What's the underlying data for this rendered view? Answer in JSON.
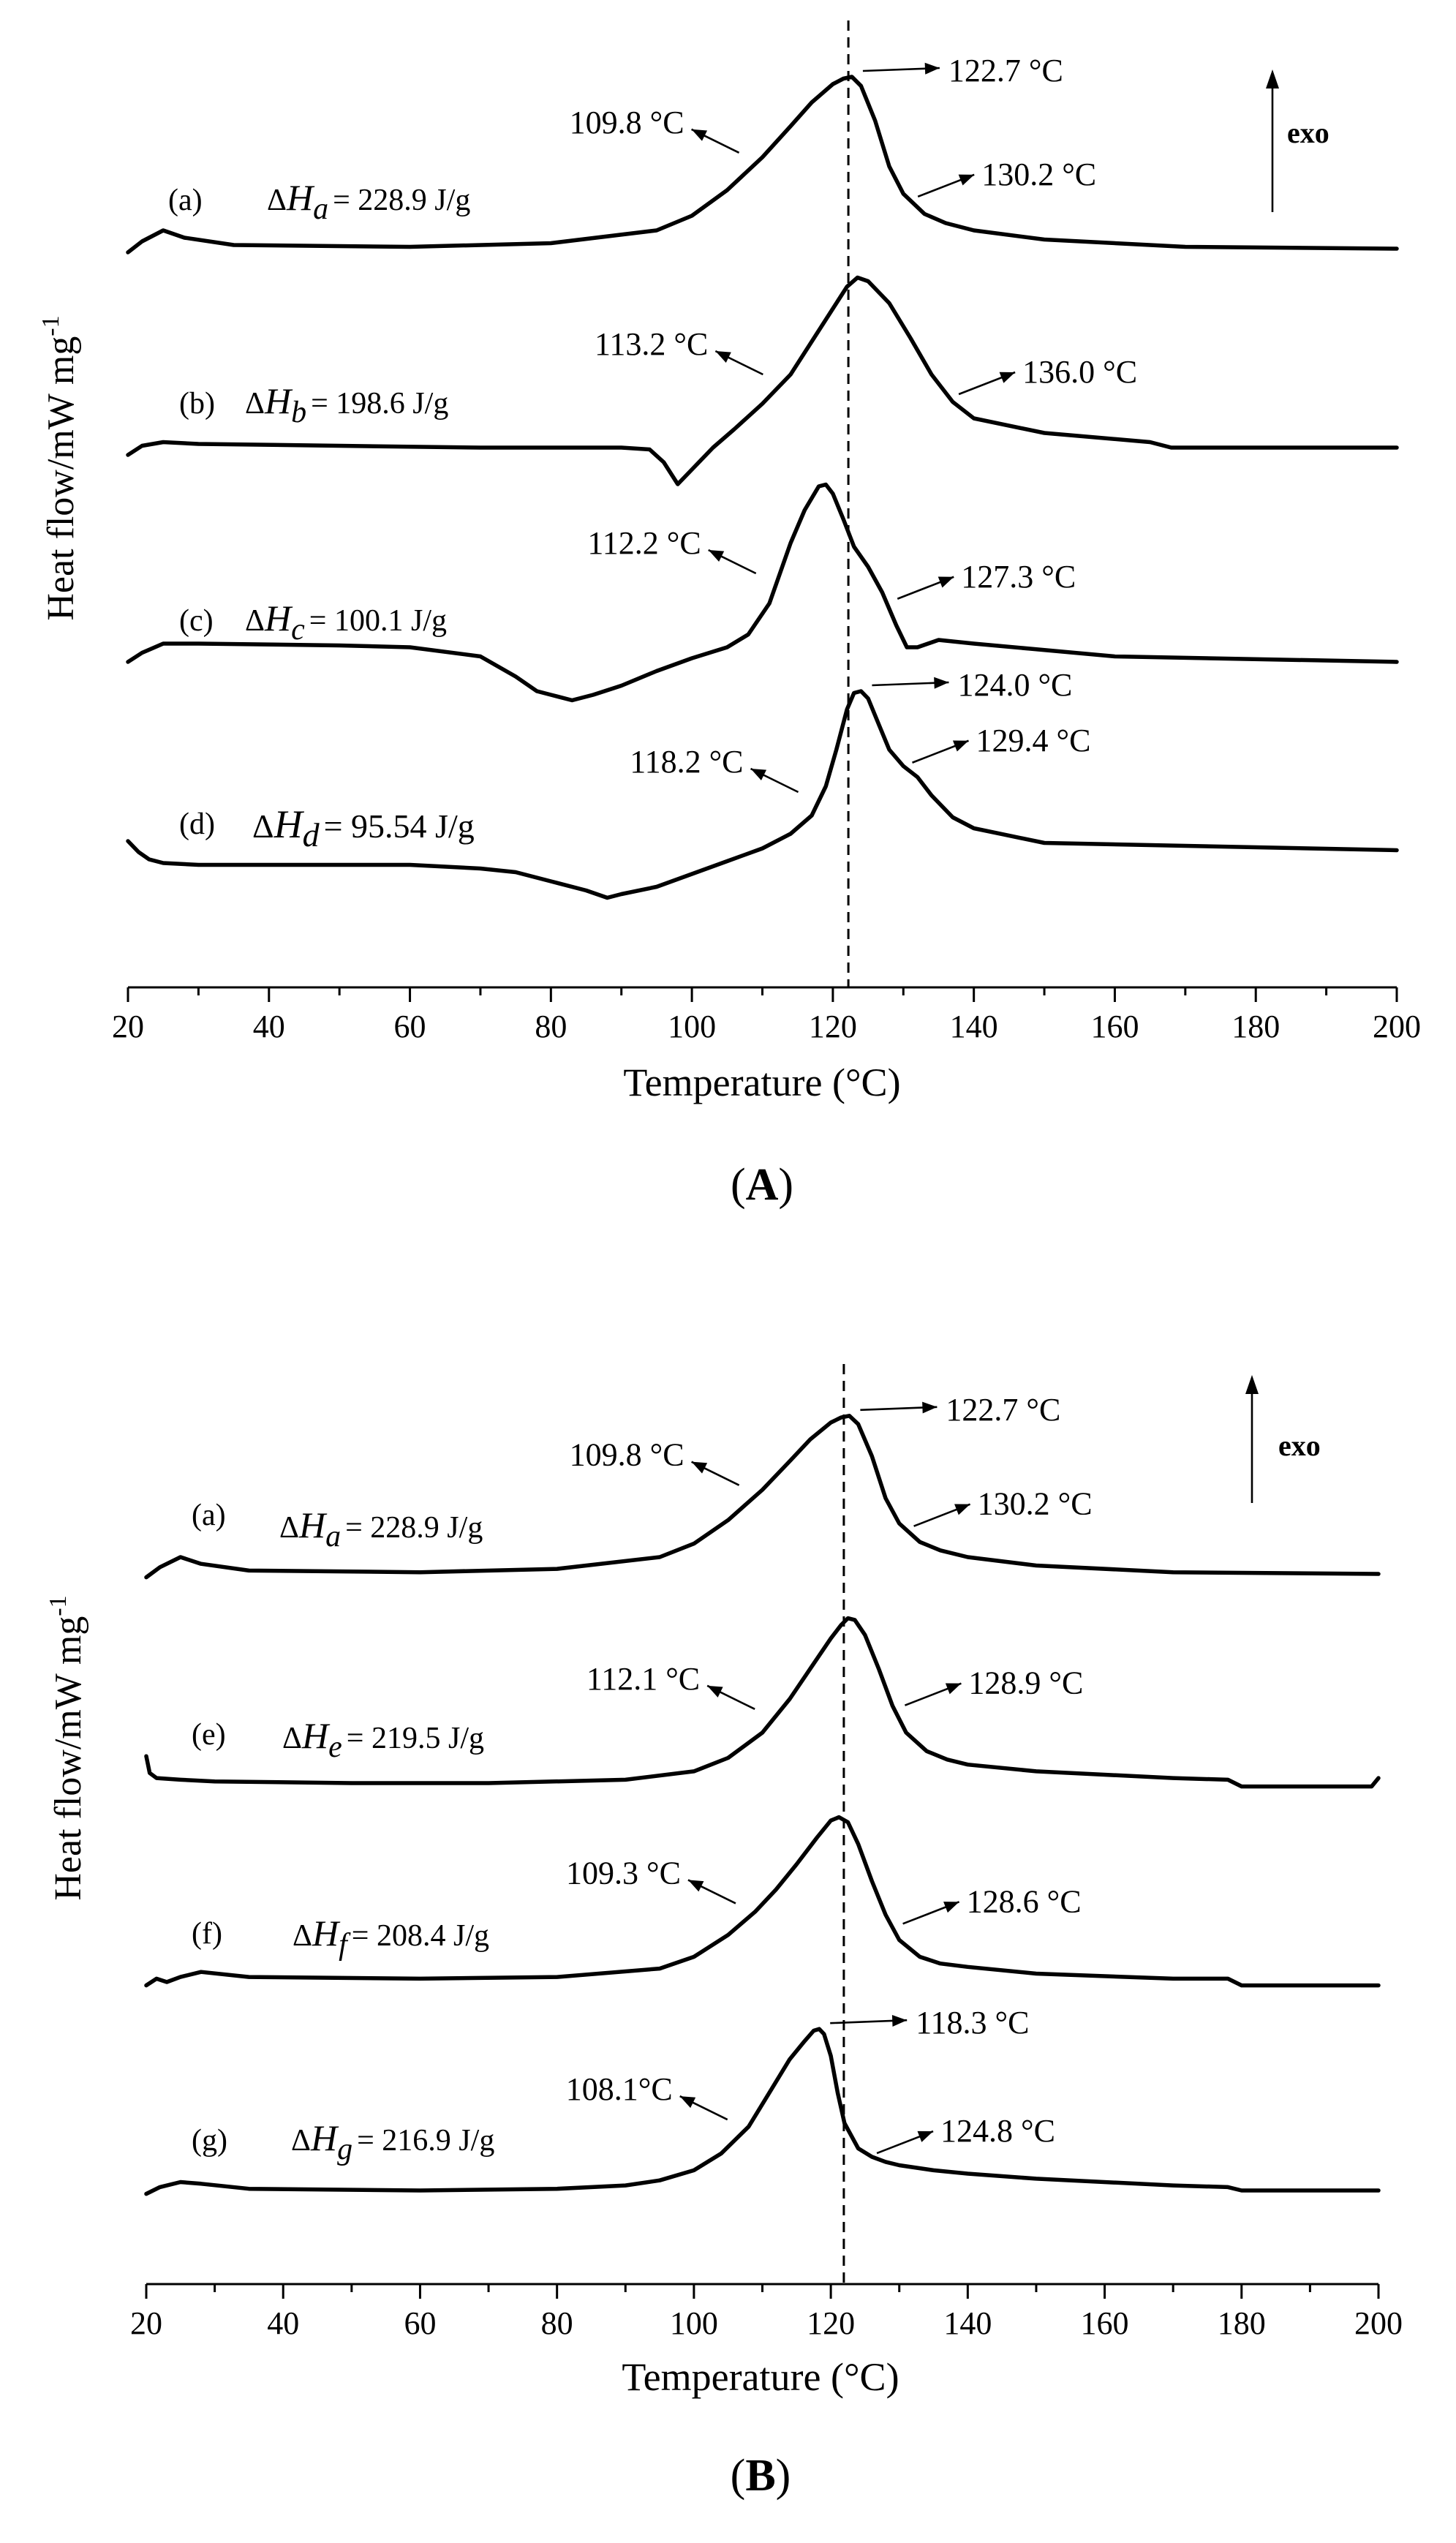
{
  "chart_data": [
    {
      "type": "line",
      "panel_label": "A",
      "xlabel": "Temperature (°C)",
      "ylabel": "Heat flow/mW mg",
      "ylabel_sup": "-1",
      "xlim": [
        20,
        200
      ],
      "xticks": [
        "20",
        "40",
        "60",
        "80",
        "100",
        "120",
        "140",
        "160",
        "180",
        "200"
      ],
      "exo_label": "exo",
      "reference_line_x": 122.2,
      "series": [
        {
          "name": "(a)",
          "dh_sub": "a",
          "dh_value": "= 228.9 J/g",
          "x": [
            20,
            22,
            25,
            28,
            35,
            60,
            80,
            95,
            100,
            105,
            110,
            114,
            117,
            120,
            121.5,
            122.7,
            124,
            126,
            128,
            130,
            133,
            136,
            140,
            150,
            170,
            200
          ],
          "y": [
            -0.02,
            0.04,
            0.1,
            0.06,
            0.02,
            0.01,
            0.03,
            0.1,
            0.18,
            0.32,
            0.5,
            0.67,
            0.8,
            0.9,
            0.93,
            0.94,
            0.89,
            0.7,
            0.45,
            0.3,
            0.19,
            0.14,
            0.1,
            0.05,
            0.01,
            0.0
          ],
          "annotations": [
            {
              "text": "109.8 °C",
              "x": 109.8,
              "side": "left"
            },
            {
              "text": "122.7 °C",
              "x": 122.7,
              "side": "peak"
            },
            {
              "text": "130.2 °C",
              "x": 130.2,
              "side": "right"
            }
          ]
        },
        {
          "name": "(b)",
          "dh_sub": "b",
          "dh_value": "= 198.6 J/g",
          "x": [
            20,
            22,
            25,
            30,
            50,
            70,
            90,
            94,
            96,
            98,
            100,
            103,
            106,
            110,
            114,
            117,
            120,
            122,
            123.5,
            125,
            128,
            131,
            134,
            137,
            140,
            150,
            165,
            168,
            170,
            200
          ],
          "y": [
            -0.02,
            0.03,
            0.05,
            0.04,
            0.03,
            0.02,
            0.02,
            0.01,
            -0.06,
            -0.18,
            -0.1,
            0.02,
            0.12,
            0.26,
            0.42,
            0.6,
            0.78,
            0.9,
            0.95,
            0.93,
            0.81,
            0.62,
            0.42,
            0.27,
            0.18,
            0.1,
            0.05,
            0.02,
            0.02,
            0.02
          ],
          "annotations": [
            {
              "text": "113.2 °C",
              "x": 113.2,
              "side": "left"
            },
            {
              "text": "136.0 °C",
              "x": 136.0,
              "side": "right"
            }
          ]
        },
        {
          "name": "(c)",
          "dh_sub": "c",
          "dh_value": "= 100.1 J/g",
          "x": [
            20,
            22,
            25,
            30,
            50,
            60,
            70,
            75,
            78,
            80,
            83,
            86,
            90,
            95,
            100,
            105,
            108,
            111,
            114,
            116,
            118,
            119,
            120,
            121.5,
            123,
            125,
            127,
            129,
            130.5,
            132,
            135,
            140,
            160,
            200
          ],
          "y": [
            0.0,
            0.05,
            0.1,
            0.1,
            0.09,
            0.08,
            0.03,
            -0.08,
            -0.16,
            -0.18,
            -0.21,
            -0.18,
            -0.13,
            -0.05,
            0.02,
            0.08,
            0.15,
            0.32,
            0.65,
            0.83,
            0.96,
            0.97,
            0.92,
            0.78,
            0.63,
            0.52,
            0.38,
            0.2,
            0.08,
            0.08,
            0.12,
            0.1,
            0.03,
            0.0
          ],
          "annotations": [
            {
              "text": "112.2 °C",
              "x": 112.2,
              "side": "left"
            },
            {
              "text": "127.3 °C",
              "x": 127.3,
              "side": "right"
            }
          ]
        },
        {
          "name": "(d)",
          "dh_sub": "d",
          "dh_value": "= 95.54 J/g",
          "x": [
            20,
            21.5,
            23,
            25,
            30,
            50,
            60,
            70,
            75,
            80,
            85,
            88,
            90,
            95,
            100,
            105,
            110,
            114,
            117,
            119,
            120.5,
            122,
            123,
            124,
            125,
            126.5,
            128,
            130,
            132,
            134,
            137,
            140,
            150,
            200
          ],
          "y": [
            0.08,
            0.02,
            -0.02,
            -0.04,
            -0.05,
            -0.05,
            -0.05,
            -0.07,
            -0.09,
            -0.14,
            -0.19,
            -0.23,
            -0.21,
            -0.17,
            -0.1,
            -0.03,
            0.04,
            0.12,
            0.22,
            0.38,
            0.58,
            0.8,
            0.89,
            0.9,
            0.86,
            0.72,
            0.58,
            0.49,
            0.43,
            0.33,
            0.21,
            0.15,
            0.07,
            0.03
          ],
          "annotations": [
            {
              "text": "118.2 °C",
              "x": 118.2,
              "side": "left"
            },
            {
              "text": "124.0 °C",
              "x": 124.0,
              "side": "peak"
            },
            {
              "text": "129.4 °C",
              "x": 129.4,
              "side": "right"
            }
          ]
        }
      ]
    },
    {
      "type": "line",
      "panel_label": "B",
      "xlabel": "Temperature (°C)",
      "ylabel": "Heat flow/mW mg",
      "ylabel_sup": "-1",
      "xlim": [
        20,
        200
      ],
      "xticks": [
        "20",
        "40",
        "60",
        "80",
        "100",
        "120",
        "140",
        "160",
        "180",
        "200"
      ],
      "exo_label": "exo",
      "reference_line_x": 121.9,
      "series": [
        {
          "name": "(a)",
          "dh_sub": "a",
          "dh_value": "= 228.9 J/g",
          "x": [
            20,
            22,
            25,
            28,
            35,
            60,
            80,
            95,
            100,
            105,
            110,
            114,
            117,
            120,
            121.5,
            122.7,
            124,
            126,
            128,
            130,
            133,
            136,
            140,
            150,
            170,
            200
          ],
          "y": [
            -0.02,
            0.04,
            0.1,
            0.06,
            0.02,
            0.01,
            0.03,
            0.1,
            0.18,
            0.32,
            0.5,
            0.67,
            0.8,
            0.9,
            0.93,
            0.94,
            0.89,
            0.7,
            0.45,
            0.3,
            0.19,
            0.14,
            0.1,
            0.05,
            0.01,
            0.0
          ],
          "annotations": [
            {
              "text": "109.8 °C",
              "x": 109.8,
              "side": "left"
            },
            {
              "text": "122.7 °C",
              "x": 122.7,
              "side": "peak"
            },
            {
              "text": "130.2 °C",
              "x": 130.2,
              "side": "right"
            }
          ]
        },
        {
          "name": "(e)",
          "dh_sub": "e",
          "dh_value": "= 219.5 J/g",
          "x": [
            20,
            20.5,
            21.5,
            25,
            30,
            50,
            70,
            90,
            100,
            105,
            110,
            114,
            117,
            120,
            121.5,
            122.5,
            123.5,
            125,
            127,
            129,
            131,
            134,
            137,
            140,
            150,
            170,
            178,
            180,
            199,
            200
          ],
          "y": [
            0.16,
            0.06,
            0.03,
            0.02,
            0.01,
            0.0,
            0.0,
            0.02,
            0.07,
            0.15,
            0.3,
            0.5,
            0.68,
            0.86,
            0.94,
            0.98,
            0.97,
            0.88,
            0.68,
            0.46,
            0.3,
            0.19,
            0.14,
            0.11,
            0.07,
            0.03,
            0.02,
            -0.02,
            -0.02,
            0.03
          ],
          "annotations": [
            {
              "text": "112.1 °C",
              "x": 112.1,
              "side": "left"
            },
            {
              "text": "128.9 °C",
              "x": 128.9,
              "side": "right"
            }
          ]
        },
        {
          "name": "(f)",
          "dh_sub": "f",
          "dh_value": "= 208.4 J/g",
          "x": [
            20,
            21.5,
            23,
            25,
            28,
            35,
            60,
            80,
            95,
            100,
            105,
            109,
            112,
            115,
            118,
            120,
            121.2,
            122.5,
            124,
            126,
            128,
            130,
            133,
            136,
            140,
            150,
            170,
            178,
            180,
            200
          ],
          "y": [
            -0.02,
            0.02,
            0.0,
            0.03,
            0.06,
            0.03,
            0.02,
            0.03,
            0.08,
            0.15,
            0.28,
            0.42,
            0.55,
            0.7,
            0.86,
            0.96,
            0.98,
            0.95,
            0.82,
            0.6,
            0.4,
            0.25,
            0.15,
            0.11,
            0.09,
            0.05,
            0.02,
            0.02,
            -0.02,
            -0.02
          ],
          "annotations": [
            {
              "text": "109.3 °C",
              "x": 109.3,
              "side": "left"
            },
            {
              "text": "128.6 °C",
              "x": 128.6,
              "side": "right"
            }
          ]
        },
        {
          "name": "(g)",
          "dh_sub": "g",
          "dh_value": "= 216.9 J/g",
          "x": [
            20,
            22,
            25,
            28,
            35,
            60,
            80,
            90,
            95,
            100,
            104,
            108,
            111,
            114,
            116,
            117.5,
            118.3,
            119,
            120,
            121,
            122,
            124,
            126,
            128,
            130,
            135,
            140,
            150,
            170,
            178,
            180,
            200
          ],
          "y": [
            -0.02,
            0.02,
            0.05,
            0.04,
            0.01,
            0.0,
            0.01,
            0.03,
            0.06,
            0.12,
            0.22,
            0.38,
            0.58,
            0.78,
            0.88,
            0.95,
            0.96,
            0.93,
            0.8,
            0.58,
            0.4,
            0.25,
            0.2,
            0.17,
            0.15,
            0.12,
            0.1,
            0.07,
            0.03,
            0.02,
            0.0,
            0.0
          ],
          "annotations": [
            {
              "text": "108.1°C",
              "x": 108.1,
              "side": "left"
            },
            {
              "text": "118.3 °C",
              "x": 118.3,
              "side": "peak"
            },
            {
              "text": "124.8 °C",
              "x": 124.8,
              "side": "right"
            }
          ]
        }
      ]
    }
  ]
}
